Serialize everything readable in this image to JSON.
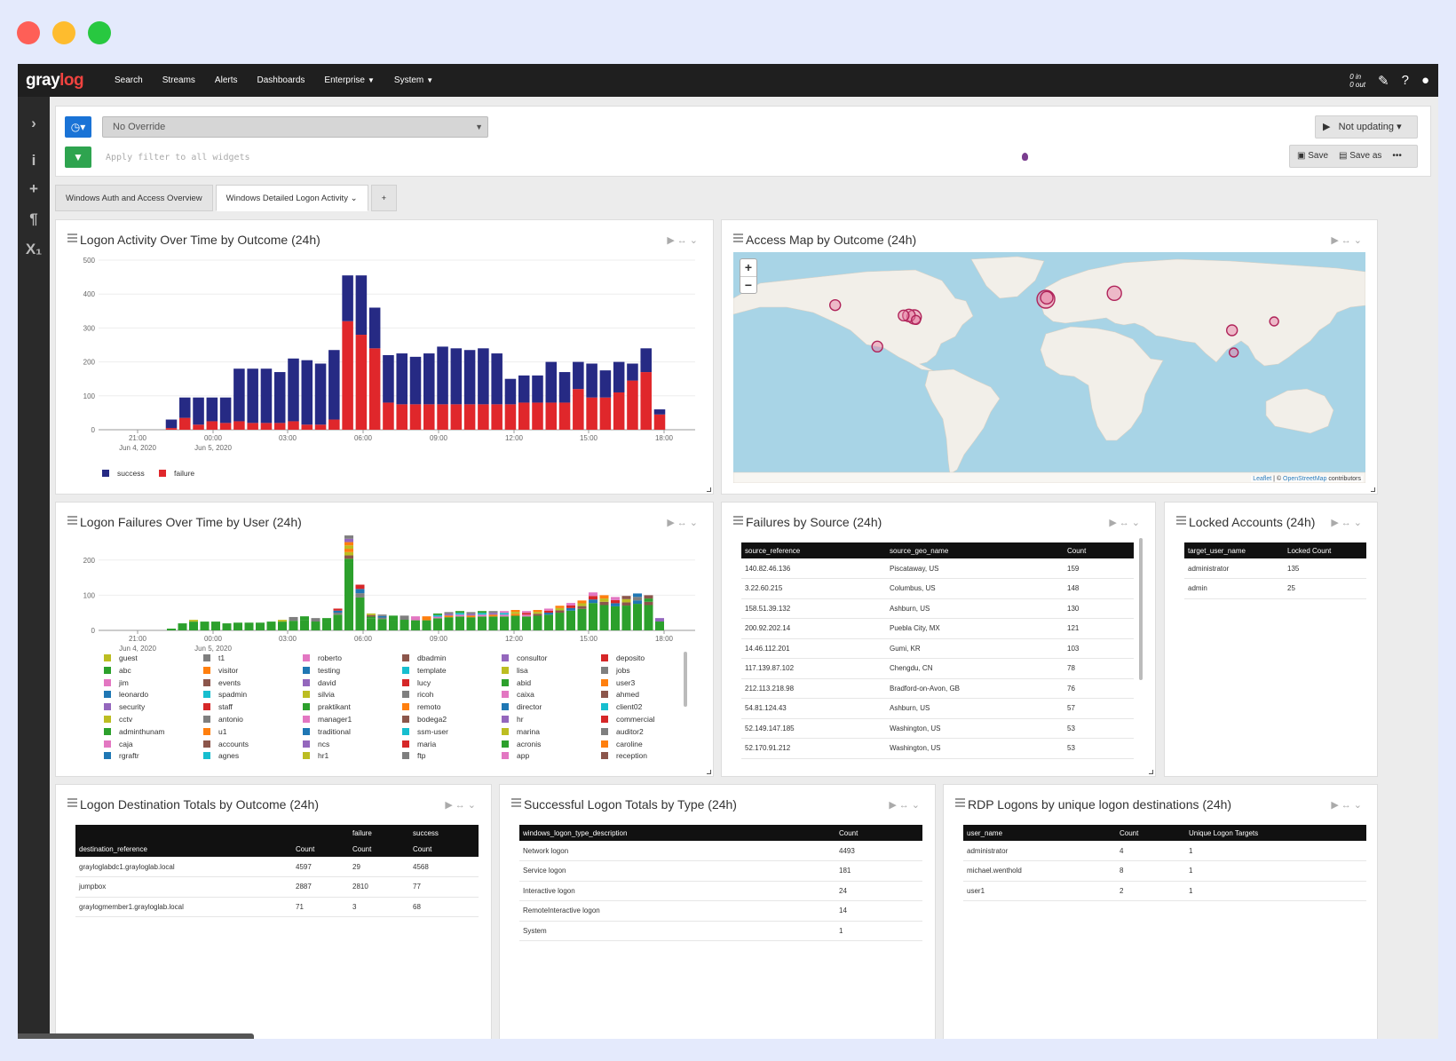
{
  "colors": {
    "close": "#fe5f57",
    "minimize": "#febc2e",
    "maximize": "#28c840",
    "success": "#262a84",
    "failure": "#e0272b",
    "brand_accent": "#f0433f"
  },
  "nav": {
    "logo_gray": "gray",
    "logo_log": "log",
    "items": [
      "Search",
      "Streams",
      "Alerts",
      "Dashboards",
      "Enterprise",
      "System"
    ],
    "throughput_in": "0 in",
    "throughput_out": "0 out"
  },
  "sidebar_icons": [
    "chevron-right-icon",
    "info-icon",
    "plus-icon",
    "paragraph-icon",
    "subscript-icon"
  ],
  "query": {
    "override": "No Override",
    "filter_placeholder": "Apply filter to all widgets",
    "updating": "Not updating",
    "save": "Save",
    "save_as": "Save as",
    "more": "•••"
  },
  "tabs": [
    "Windows Auth and Access Overview",
    "Windows Detailed Logon Activity",
    "+"
  ],
  "w1": {
    "title": "Logon Activity Over Time by Outcome (24h)"
  },
  "w2": {
    "title": "Access Map by Outcome (24h)",
    "attrib_leaflet": "Leaflet",
    "attrib_osm": "OpenStreetMap",
    "attrib_rest": " contributors"
  },
  "w3": {
    "title": "Logon Failures Over Time by User (24h)"
  },
  "w4": {
    "title": "Failures by Source (24h)",
    "headers": [
      "source_reference",
      "source_geo_name",
      "Count"
    ],
    "rows": [
      [
        "140.82.46.136",
        "Piscataway, US",
        "159"
      ],
      [
        "3.22.60.215",
        "Columbus, US",
        "148"
      ],
      [
        "158.51.39.132",
        "Ashburn, US",
        "130"
      ],
      [
        "200.92.202.14",
        "Puebla City, MX",
        "121"
      ],
      [
        "14.46.112.201",
        "Gumi, KR",
        "103"
      ],
      [
        "117.139.87.102",
        "Chengdu, CN",
        "78"
      ],
      [
        "212.113.218.98",
        "Bradford-on-Avon, GB",
        "76"
      ],
      [
        "54.81.124.43",
        "Ashburn, US",
        "57"
      ],
      [
        "52.149.147.185",
        "Washington, US",
        "53"
      ],
      [
        "52.170.91.212",
        "Washington, US",
        "53"
      ]
    ]
  },
  "w5": {
    "title": "Locked Accounts (24h)",
    "headers": [
      "target_user_name",
      "Locked Count"
    ],
    "rows": [
      [
        "administrator",
        "135"
      ],
      [
        "admin",
        "25"
      ]
    ]
  },
  "w6": {
    "title": "Logon Destination Totals by Outcome (24h)",
    "group_headers": [
      "",
      "",
      "failure",
      "success"
    ],
    "headers": [
      "destination_reference",
      "Count",
      "Count",
      "Count"
    ],
    "rows": [
      [
        "grayloglabdc1.grayloglab.local",
        "4597",
        "29",
        "4568"
      ],
      [
        "jumpbox",
        "2887",
        "2810",
        "77"
      ],
      [
        "graylogmember1.grayloglab.local",
        "71",
        "3",
        "68"
      ]
    ]
  },
  "w7": {
    "title": "Successful Logon Totals by Type (24h)",
    "headers": [
      "windows_logon_type_description",
      "Count"
    ],
    "rows": [
      [
        "Network logon",
        "4493"
      ],
      [
        "Service logon",
        "181"
      ],
      [
        "Interactive logon",
        "24"
      ],
      [
        "RemoteInteractive logon",
        "14"
      ],
      [
        "System",
        "1"
      ]
    ]
  },
  "w8": {
    "title": "RDP Logons by unique logon destinations (24h)",
    "headers": [
      "user_name",
      "Count",
      "Unique Logon Targets"
    ],
    "rows": [
      [
        "administrator",
        "4",
        "1"
      ],
      [
        "michael.wenthold",
        "8",
        "1"
      ],
      [
        "user1",
        "2",
        "1"
      ]
    ]
  },
  "map_points": [
    {
      "place": "Seattle area",
      "lon": -122,
      "lat": 47,
      "r": 6
    },
    {
      "place": "Mexico",
      "lon": -98,
      "lat": 19,
      "r": 6
    },
    {
      "place": "US East",
      "lon": -77,
      "lat": 39,
      "r": 8
    },
    {
      "place": "US East 2",
      "lon": -80,
      "lat": 40,
      "r": 7
    },
    {
      "place": "US East 3",
      "lon": -83,
      "lat": 40,
      "r": 6
    },
    {
      "place": "US East 4",
      "lon": -76,
      "lat": 37,
      "r": 5
    },
    {
      "place": "UK",
      "lon": -2,
      "lat": 51,
      "r": 10
    },
    {
      "place": "UK 2",
      "lon": -1.5,
      "lat": 52,
      "r": 7
    },
    {
      "place": "Moscow",
      "lon": 37,
      "lat": 55,
      "r": 8
    },
    {
      "place": "Chengdu",
      "lon": 104,
      "lat": 30,
      "r": 6
    },
    {
      "place": "Korea",
      "lon": 128,
      "lat": 36,
      "r": 5
    },
    {
      "place": "SE Asia",
      "lon": 105,
      "lat": 15,
      "r": 5
    }
  ],
  "chart_data": [
    {
      "type": "bar",
      "title": "Logon Activity Over Time by Outcome (24h)",
      "stacked": true,
      "x_tick_labels": [
        "21:00",
        "00:00",
        "03:00",
        "06:00",
        "09:00",
        "12:00",
        "15:00",
        "18:00"
      ],
      "x_tick_sublabels": [
        "Jun 4, 2020",
        "Jun 5, 2020",
        "",
        "",
        "",
        "",
        "",
        ""
      ],
      "ylim": [
        0,
        500
      ],
      "y_ticks": [
        0,
        100,
        200,
        300,
        400,
        500
      ],
      "series": [
        {
          "name": "success",
          "color": "#262a84",
          "values": [
            25,
            60,
            80,
            70,
            75,
            155,
            160,
            160,
            150,
            185,
            190,
            180,
            205,
            135,
            175,
            120,
            140,
            150,
            140,
            150,
            170,
            165,
            160,
            165,
            150,
            75,
            80,
            80,
            120,
            90,
            80,
            100,
            80,
            90,
            50,
            70,
            15
          ]
        },
        {
          "name": "failure",
          "color": "#e0272b",
          "values": [
            5,
            35,
            15,
            25,
            20,
            25,
            20,
            20,
            20,
            25,
            15,
            15,
            30,
            320,
            280,
            240,
            80,
            75,
            75,
            75,
            75,
            75,
            75,
            75,
            75,
            75,
            80,
            80,
            80,
            80,
            120,
            95,
            95,
            110,
            145,
            170,
            45
          ]
        }
      ]
    },
    {
      "type": "bar",
      "title": "Logon Failures Over Time by User (24h)",
      "stacked": true,
      "x_tick_labels": [
        "21:00",
        "00:00",
        "03:00",
        "06:00",
        "09:00",
        "12:00",
        "15:00",
        "18:00"
      ],
      "x_tick_sublabels": [
        "Jun 4, 2020",
        "Jun 5, 2020",
        "",
        "",
        "",
        "",
        "",
        ""
      ],
      "ylim": [
        0,
        250
      ],
      "y_ticks": [
        0,
        100,
        200
      ],
      "totals": [
        5,
        20,
        30,
        25,
        25,
        20,
        22,
        22,
        22,
        25,
        30,
        38,
        40,
        35,
        35,
        62,
        270,
        130,
        48,
        45,
        42,
        42,
        40,
        40,
        48,
        52,
        55,
        52,
        55,
        55,
        55,
        58,
        55,
        58,
        62,
        70,
        78,
        85,
        108,
        100,
        95,
        98,
        105,
        100,
        35
      ],
      "series": [
        {
          "name": "guest",
          "color": "#bcbd22"
        },
        {
          "name": "t1",
          "color": "#7f7f7f"
        },
        {
          "name": "roberto",
          "color": "#e377c2"
        },
        {
          "name": "dbadmin",
          "color": "#8c564b"
        },
        {
          "name": "consultor",
          "color": "#9467bd"
        },
        {
          "name": "deposito",
          "color": "#d62728"
        },
        {
          "name": "abc",
          "color": "#2ca02c"
        },
        {
          "name": "visitor",
          "color": "#ff7f0e"
        },
        {
          "name": "testing",
          "color": "#1f77b4"
        },
        {
          "name": "template",
          "color": "#17becf"
        },
        {
          "name": "lisa",
          "color": "#bcbd22"
        },
        {
          "name": "jobs",
          "color": "#7f7f7f"
        },
        {
          "name": "jim",
          "color": "#e377c2"
        },
        {
          "name": "events",
          "color": "#8c564b"
        },
        {
          "name": "david",
          "color": "#9467bd"
        },
        {
          "name": "lucy",
          "color": "#d62728"
        },
        {
          "name": "abid",
          "color": "#2ca02c"
        },
        {
          "name": "user3",
          "color": "#ff7f0e"
        },
        {
          "name": "leonardo",
          "color": "#1f77b4"
        },
        {
          "name": "spadmin",
          "color": "#17becf"
        },
        {
          "name": "silvia",
          "color": "#bcbd22"
        },
        {
          "name": "ricoh",
          "color": "#7f7f7f"
        },
        {
          "name": "caixa",
          "color": "#e377c2"
        },
        {
          "name": "ahmed",
          "color": "#8c564b"
        },
        {
          "name": "security",
          "color": "#9467bd"
        },
        {
          "name": "staff",
          "color": "#d62728"
        },
        {
          "name": "praktikant",
          "color": "#2ca02c"
        },
        {
          "name": "remoto",
          "color": "#ff7f0e"
        },
        {
          "name": "director",
          "color": "#1f77b4"
        },
        {
          "name": "client02",
          "color": "#17becf"
        },
        {
          "name": "cctv",
          "color": "#bcbd22"
        },
        {
          "name": "antonio",
          "color": "#7f7f7f"
        },
        {
          "name": "manager1",
          "color": "#e377c2"
        },
        {
          "name": "bodega2",
          "color": "#8c564b"
        },
        {
          "name": "hr",
          "color": "#9467bd"
        },
        {
          "name": "commercial",
          "color": "#d62728"
        },
        {
          "name": "adminthunam",
          "color": "#2ca02c"
        },
        {
          "name": "u1",
          "color": "#ff7f0e"
        },
        {
          "name": "traditional",
          "color": "#1f77b4"
        },
        {
          "name": "ssm-user",
          "color": "#17becf"
        },
        {
          "name": "marina",
          "color": "#bcbd22"
        },
        {
          "name": "auditor2",
          "color": "#7f7f7f"
        },
        {
          "name": "caja",
          "color": "#e377c2"
        },
        {
          "name": "accounts",
          "color": "#8c564b"
        },
        {
          "name": "ncs",
          "color": "#9467bd"
        },
        {
          "name": "maria",
          "color": "#d62728"
        },
        {
          "name": "acronis",
          "color": "#2ca02c"
        },
        {
          "name": "caroline",
          "color": "#ff7f0e"
        },
        {
          "name": "rgraftr",
          "color": "#1f77b4"
        },
        {
          "name": "agnes",
          "color": "#17becf"
        },
        {
          "name": "hr1",
          "color": "#bcbd22"
        },
        {
          "name": "ftp",
          "color": "#7f7f7f"
        },
        {
          "name": "app",
          "color": "#e377c2"
        },
        {
          "name": "reception",
          "color": "#8c564b"
        }
      ]
    }
  ]
}
